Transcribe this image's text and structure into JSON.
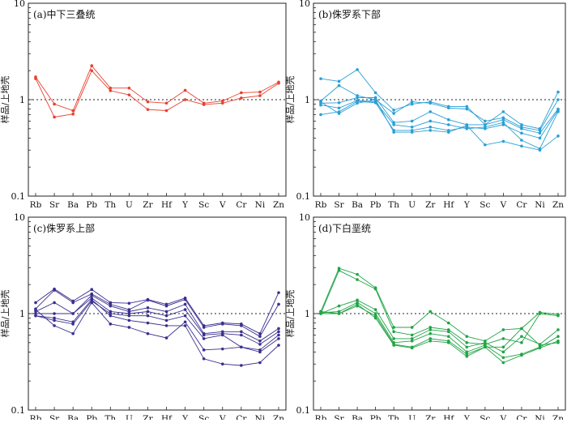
{
  "chart_data": [
    {
      "type": "line",
      "title": "(a)中下三叠统",
      "ylabel": "样品/上地壳",
      "yscale": "log",
      "ylim": [
        0.1,
        10
      ],
      "yticks": [
        "0.1",
        "1",
        "10"
      ],
      "reference_line": 1,
      "color": "#e8402f",
      "categories": [
        "Rb",
        "Sr",
        "Ba",
        "Pb",
        "Th",
        "U",
        "Zr",
        "Hf",
        "Y",
        "Sc",
        "V",
        "Cr",
        "Ni",
        "Zn"
      ],
      "series": [
        {
          "values": [
            1.72,
            0.9,
            0.77,
            2.25,
            1.32,
            1.32,
            0.95,
            0.92,
            1.25,
            0.92,
            0.97,
            1.18,
            1.2,
            1.52
          ]
        },
        {
          "values": [
            1.65,
            0.66,
            0.71,
            2.0,
            1.24,
            1.12,
            0.79,
            0.77,
            1.0,
            0.89,
            0.92,
            1.04,
            1.1,
            1.48
          ]
        }
      ]
    },
    {
      "type": "line",
      "title": "(b)侏罗系下部",
      "ylabel": "样品/上地壳",
      "yscale": "log",
      "ylim": [
        0.1,
        10
      ],
      "yticks": [
        "0.1",
        "1",
        "10"
      ],
      "reference_line": 1,
      "color": "#2a9fd6",
      "categories": [
        "Rb",
        "Sr",
        "Ba",
        "Pb",
        "Th",
        "U",
        "Zr",
        "Hf",
        "Y",
        "Sc",
        "V",
        "Cr",
        "Ni",
        "Zn"
      ],
      "series": [
        {
          "values": [
            1.65,
            1.55,
            2.05,
            1.18,
            0.78,
            0.9,
            0.95,
            0.85,
            0.85,
            0.55,
            0.75,
            0.55,
            0.5,
            1.2
          ]
        },
        {
          "values": [
            0.97,
            1.4,
            1.1,
            1.0,
            0.72,
            0.95,
            0.92,
            0.82,
            0.8,
            0.6,
            0.65,
            0.52,
            0.48,
            1.0
          ]
        },
        {
          "values": [
            0.92,
            0.93,
            1.05,
            1.05,
            0.58,
            0.6,
            0.75,
            0.62,
            0.55,
            0.55,
            0.62,
            0.5,
            0.45,
            0.8
          ]
        },
        {
          "values": [
            0.88,
            0.82,
            0.98,
            0.95,
            0.55,
            0.52,
            0.6,
            0.55,
            0.5,
            0.52,
            0.58,
            0.38,
            0.31,
            0.75
          ]
        },
        {
          "values": [
            0.7,
            0.75,
            0.96,
            0.93,
            0.48,
            0.48,
            0.52,
            0.48,
            0.52,
            0.5,
            0.55,
            0.45,
            0.4,
            0.78
          ]
        },
        {
          "values": [
            0.95,
            0.72,
            0.92,
            1.0,
            0.46,
            0.46,
            0.48,
            0.46,
            0.54,
            0.34,
            0.37,
            0.33,
            0.3,
            0.42
          ]
        }
      ]
    },
    {
      "type": "line",
      "title": "(c)侏罗系上部",
      "ylabel": "样品/上地壳",
      "yscale": "log",
      "ylim": [
        0.1,
        10
      ],
      "yticks": [
        "0.1",
        "1",
        "10"
      ],
      "reference_line": 1,
      "color": "#3b2f8f",
      "categories": [
        "Rb",
        "Sr",
        "Ba",
        "Pb",
        "Th",
        "U",
        "Zr",
        "Hf",
        "Y",
        "Sc",
        "V",
        "Cr",
        "Ni",
        "Zn"
      ],
      "series": [
        {
          "values": [
            1.3,
            1.8,
            1.35,
            1.78,
            1.3,
            1.28,
            1.4,
            1.25,
            1.45,
            0.75,
            0.8,
            0.78,
            0.62,
            1.65
          ]
        },
        {
          "values": [
            1.12,
            1.75,
            1.3,
            1.6,
            1.25,
            1.1,
            1.38,
            1.2,
            1.4,
            0.72,
            0.78,
            0.75,
            0.58,
            1.25
          ]
        },
        {
          "values": [
            1.05,
            1.3,
            1.0,
            1.55,
            1.2,
            1.05,
            1.15,
            1.05,
            1.25,
            0.62,
            0.65,
            0.65,
            0.52,
            0.7
          ]
        },
        {
          "values": [
            1.0,
            1.0,
            1.0,
            1.45,
            1.05,
            1.0,
            1.05,
            0.95,
            1.1,
            0.6,
            0.62,
            0.6,
            0.48,
            0.65
          ]
        },
        {
          "values": [
            0.95,
            0.85,
            0.78,
            1.35,
            1.0,
            0.95,
            0.95,
            0.85,
            0.95,
            0.55,
            0.6,
            0.45,
            0.42,
            0.6
          ]
        },
        {
          "values": [
            1.1,
            0.75,
            0.62,
            1.3,
            0.78,
            0.72,
            0.62,
            0.56,
            0.82,
            0.42,
            0.43,
            0.45,
            0.4,
            0.55
          ]
        },
        {
          "values": [
            0.95,
            0.9,
            0.82,
            1.4,
            0.95,
            0.85,
            0.8,
            0.75,
            0.75,
            0.34,
            0.3,
            0.29,
            0.31,
            0.47
          ]
        }
      ]
    },
    {
      "type": "line",
      "title": "(d)下白垩统",
      "ylabel": "样品/上地壳",
      "yscale": "log",
      "ylim": [
        0.1,
        10
      ],
      "yticks": [
        "0.1",
        "1",
        "10"
      ],
      "reference_line": 1,
      "color": "#22a447",
      "categories": [
        "Rb",
        "Sr",
        "Ba",
        "Pb",
        "Th",
        "U",
        "Zr",
        "Hf",
        "Y",
        "Sc",
        "V",
        "Cr",
        "Ni",
        "Zn"
      ],
      "series": [
        {
          "values": [
            1.05,
            2.95,
            2.55,
            1.85,
            0.72,
            0.72,
            1.05,
            0.8,
            0.58,
            0.52,
            0.68,
            0.7,
            1.03,
            0.98
          ]
        },
        {
          "values": [
            1.0,
            2.8,
            2.25,
            1.8,
            0.65,
            0.6,
            0.72,
            0.68,
            0.5,
            0.48,
            0.55,
            0.5,
            1.0,
            0.95
          ]
        },
        {
          "values": [
            1.0,
            1.2,
            1.38,
            1.1,
            0.55,
            0.55,
            0.68,
            0.65,
            0.45,
            0.5,
            0.4,
            0.58,
            0.48,
            0.68
          ]
        },
        {
          "values": [
            1.02,
            1.05,
            1.3,
            1.0,
            0.5,
            0.52,
            0.62,
            0.58,
            0.4,
            0.47,
            0.35,
            0.38,
            0.45,
            0.58
          ]
        },
        {
          "values": [
            1.0,
            1.0,
            1.2,
            0.95,
            0.48,
            0.45,
            0.55,
            0.52,
            0.38,
            0.45,
            0.31,
            0.37,
            0.44,
            0.52
          ]
        },
        {
          "values": [
            1.05,
            1.0,
            1.25,
            0.9,
            0.47,
            0.44,
            0.52,
            0.5,
            0.36,
            0.45,
            0.45,
            0.7,
            0.47,
            0.5
          ]
        }
      ]
    }
  ]
}
